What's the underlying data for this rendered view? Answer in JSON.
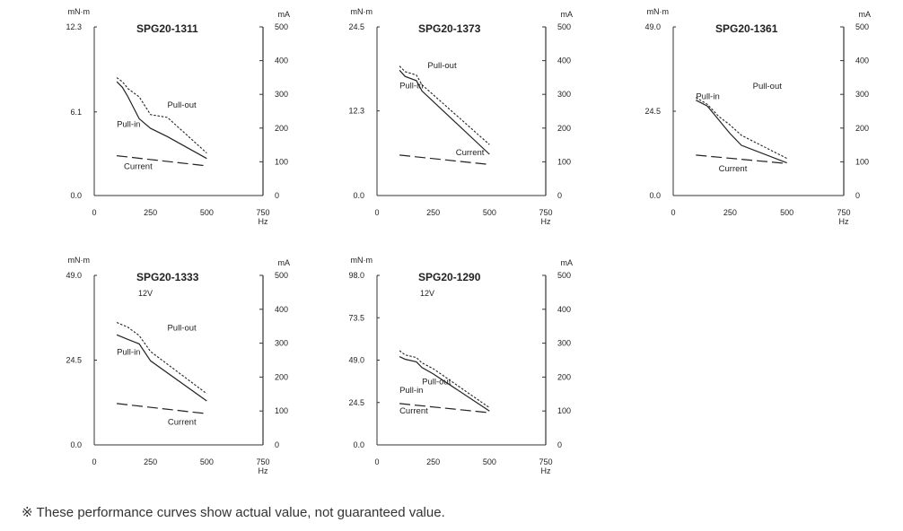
{
  "chart_data": [
    {
      "type": "line",
      "title": "SPG20-1311",
      "subtitle": "",
      "x_unit": "Hz",
      "y_left_unit": "mN·m",
      "y_right_unit": "mA",
      "xlim": [
        0,
        750
      ],
      "ylim_left": [
        0,
        12.3
      ],
      "ylim_right": [
        0,
        500
      ],
      "x_ticks": [
        "0",
        "250",
        "500",
        "750"
      ],
      "y_left_ticks": [
        "0.0",
        "6.1",
        "12.3"
      ],
      "y_right_ticks": [
        "0",
        "100",
        "200",
        "300",
        "400",
        "500"
      ],
      "series": [
        {
          "name": "Pull-out",
          "axis": "left",
          "style": "dotted",
          "x": [
            100,
            125,
            150,
            200,
            250,
            325,
            500
          ],
          "y": [
            8.6,
            8.3,
            7.8,
            7.2,
            5.9,
            5.7,
            3.1
          ]
        },
        {
          "name": "Pull-in",
          "axis": "left",
          "style": "solid",
          "x": [
            100,
            125,
            150,
            200,
            250,
            325,
            500
          ],
          "y": [
            8.3,
            7.9,
            7.2,
            5.6,
            4.9,
            4.3,
            2.7
          ]
        },
        {
          "name": "Current",
          "axis": "right",
          "style": "dashed",
          "x": [
            100,
            500
          ],
          "y": [
            118,
            88
          ]
        }
      ]
    },
    {
      "type": "line",
      "title": "SPG20-1373",
      "subtitle": "",
      "x_unit": "Hz",
      "y_left_unit": "mN·m",
      "y_right_unit": "mA",
      "xlim": [
        0,
        750
      ],
      "ylim_left": [
        0,
        24.5
      ],
      "ylim_right": [
        0,
        500
      ],
      "x_ticks": [
        "0",
        "250",
        "500",
        "750"
      ],
      "y_left_ticks": [
        "0.0",
        "12.3",
        "24.5"
      ],
      "y_right_ticks": [
        "0",
        "100",
        "200",
        "300",
        "400",
        "500"
      ],
      "series": [
        {
          "name": "Pull-out",
          "axis": "left",
          "style": "dotted",
          "x": [
            100,
            125,
            175,
            200,
            500
          ],
          "y": [
            18.8,
            18.0,
            17.5,
            16.1,
            7.4
          ]
        },
        {
          "name": "Pull-in",
          "axis": "left",
          "style": "solid",
          "x": [
            100,
            125,
            175,
            200,
            500
          ],
          "y": [
            18.2,
            17.3,
            16.7,
            15.2,
            6.0
          ]
        },
        {
          "name": "Current",
          "axis": "right",
          "style": "dashed",
          "x": [
            100,
            500
          ],
          "y": [
            120,
            92
          ]
        }
      ]
    },
    {
      "type": "line",
      "title": "SPG20-1361",
      "subtitle": "",
      "x_unit": "Hz",
      "y_left_unit": "mN·m",
      "y_right_unit": "mA",
      "xlim": [
        0,
        750
      ],
      "ylim_left": [
        0,
        49.0
      ],
      "ylim_right": [
        0,
        500
      ],
      "x_ticks": [
        "0",
        "250",
        "500",
        "750"
      ],
      "y_left_ticks": [
        "0.0",
        "24.5",
        "49.0"
      ],
      "y_right_ticks": [
        "0",
        "100",
        "200",
        "300",
        "400",
        "500"
      ],
      "series": [
        {
          "name": "Pull-out",
          "axis": "left",
          "style": "dotted",
          "x": [
            100,
            150,
            200,
            250,
            300,
            500
          ],
          "y": [
            28.5,
            26.5,
            23.0,
            20.5,
            17.5,
            10.8
          ]
        },
        {
          "name": "Pull-in",
          "axis": "left",
          "style": "solid",
          "x": [
            100,
            150,
            200,
            250,
            300,
            500
          ],
          "y": [
            27.7,
            26.0,
            22.0,
            18.0,
            14.6,
            9.5
          ]
        },
        {
          "name": "Current",
          "axis": "right",
          "style": "dashed",
          "x": [
            100,
            500
          ],
          "y": [
            120,
            95
          ]
        }
      ]
    },
    {
      "type": "line",
      "title": "SPG20-1333",
      "subtitle": "12V",
      "x_unit": "Hz",
      "y_left_unit": "mN·m",
      "y_right_unit": "mA",
      "xlim": [
        0,
        750
      ],
      "ylim_left": [
        0,
        49.0
      ],
      "ylim_right": [
        0,
        500
      ],
      "x_ticks": [
        "0",
        "250",
        "500",
        "750"
      ],
      "y_left_ticks": [
        "0.0",
        "24.5",
        "49.0"
      ],
      "y_right_ticks": [
        "0",
        "100",
        "200",
        "300",
        "400",
        "500"
      ],
      "series": [
        {
          "name": "Pull-out",
          "axis": "left",
          "style": "dotted",
          "x": [
            100,
            150,
            200,
            250,
            500
          ],
          "y": [
            35.4,
            34.0,
            31.6,
            27.0,
            14.8
          ]
        },
        {
          "name": "Pull-in",
          "axis": "left",
          "style": "solid",
          "x": [
            100,
            150,
            200,
            250,
            500
          ],
          "y": [
            31.8,
            30.5,
            29.2,
            24.3,
            12.7
          ]
        },
        {
          "name": "Current",
          "axis": "right",
          "style": "dashed",
          "x": [
            100,
            500
          ],
          "y": [
            122,
            92
          ]
        }
      ]
    },
    {
      "type": "line",
      "title": "SPG20-1290",
      "subtitle": "12V",
      "x_unit": "Hz",
      "y_left_unit": "mN·m",
      "y_right_unit": "mA",
      "xlim": [
        0,
        750
      ],
      "ylim_left": [
        0,
        98.0
      ],
      "ylim_right": [
        0,
        500
      ],
      "x_ticks": [
        "0",
        "250",
        "500",
        "750"
      ],
      "y_left_ticks": [
        "0.0",
        "24.5",
        "49.0",
        "73.5",
        "98.0"
      ],
      "y_right_ticks": [
        "0",
        "100",
        "200",
        "300",
        "400",
        "500"
      ],
      "series": [
        {
          "name": "Pull-out",
          "axis": "left",
          "style": "dotted",
          "x": [
            100,
            125,
            175,
            200,
            250,
            500
          ],
          "y": [
            54.5,
            52.0,
            50.5,
            47.4,
            44.0,
            21.5
          ]
        },
        {
          "name": "Pull-in",
          "axis": "left",
          "style": "solid",
          "x": [
            100,
            125,
            175,
            200,
            250,
            500
          ],
          "y": [
            51.0,
            49.5,
            48.0,
            44.7,
            41.0,
            19.6
          ]
        },
        {
          "name": "Current",
          "axis": "right",
          "style": "dashed",
          "x": [
            100,
            500
          ],
          "y": [
            122,
            95
          ]
        }
      ]
    }
  ],
  "footnote": "※ These performance curves show actual value, not guaranteed value."
}
